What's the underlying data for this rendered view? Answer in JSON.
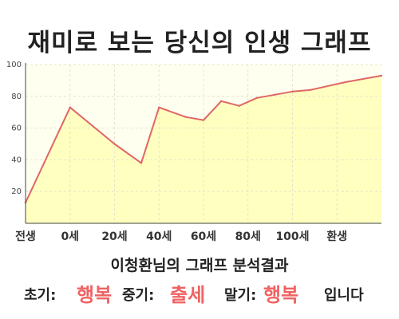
{
  "title": "재미로 보는 당신의 인생 그래프",
  "chart_data": {
    "type": "area",
    "x": [
      0,
      12.5,
      25,
      32.5,
      37.5,
      45,
      50,
      55,
      60,
      65,
      70,
      75,
      80,
      90,
      100
    ],
    "values": [
      13,
      73,
      50,
      38,
      73,
      67,
      65,
      77,
      74,
      79,
      81,
      83,
      84,
      89,
      93
    ],
    "x_ticks": [
      {
        "pos": 0,
        "label": "전생"
      },
      {
        "pos": 12.5,
        "label": "0세"
      },
      {
        "pos": 25,
        "label": "20세"
      },
      {
        "pos": 37.5,
        "label": "40세"
      },
      {
        "pos": 50,
        "label": "60세"
      },
      {
        "pos": 62.5,
        "label": "80세"
      },
      {
        "pos": 75,
        "label": "100세"
      },
      {
        "pos": 87.5,
        "label": "환생"
      }
    ],
    "y_ticks": [
      20,
      40,
      60,
      80,
      100
    ],
    "ylim": [
      0,
      100
    ],
    "xlim": [
      0,
      100
    ],
    "grid": true,
    "line_color": "#e06666",
    "fill_color": "#ffffc0"
  },
  "subtitle": "이청환님의 그래프 분석결과",
  "result": {
    "early_label": "초기:",
    "early_value": "행복",
    "mid_label": "중기:",
    "mid_value": "출세",
    "late_label": "말기:",
    "late_value": "행복",
    "ending": "입니다",
    "highlight_color": "#f06262"
  }
}
